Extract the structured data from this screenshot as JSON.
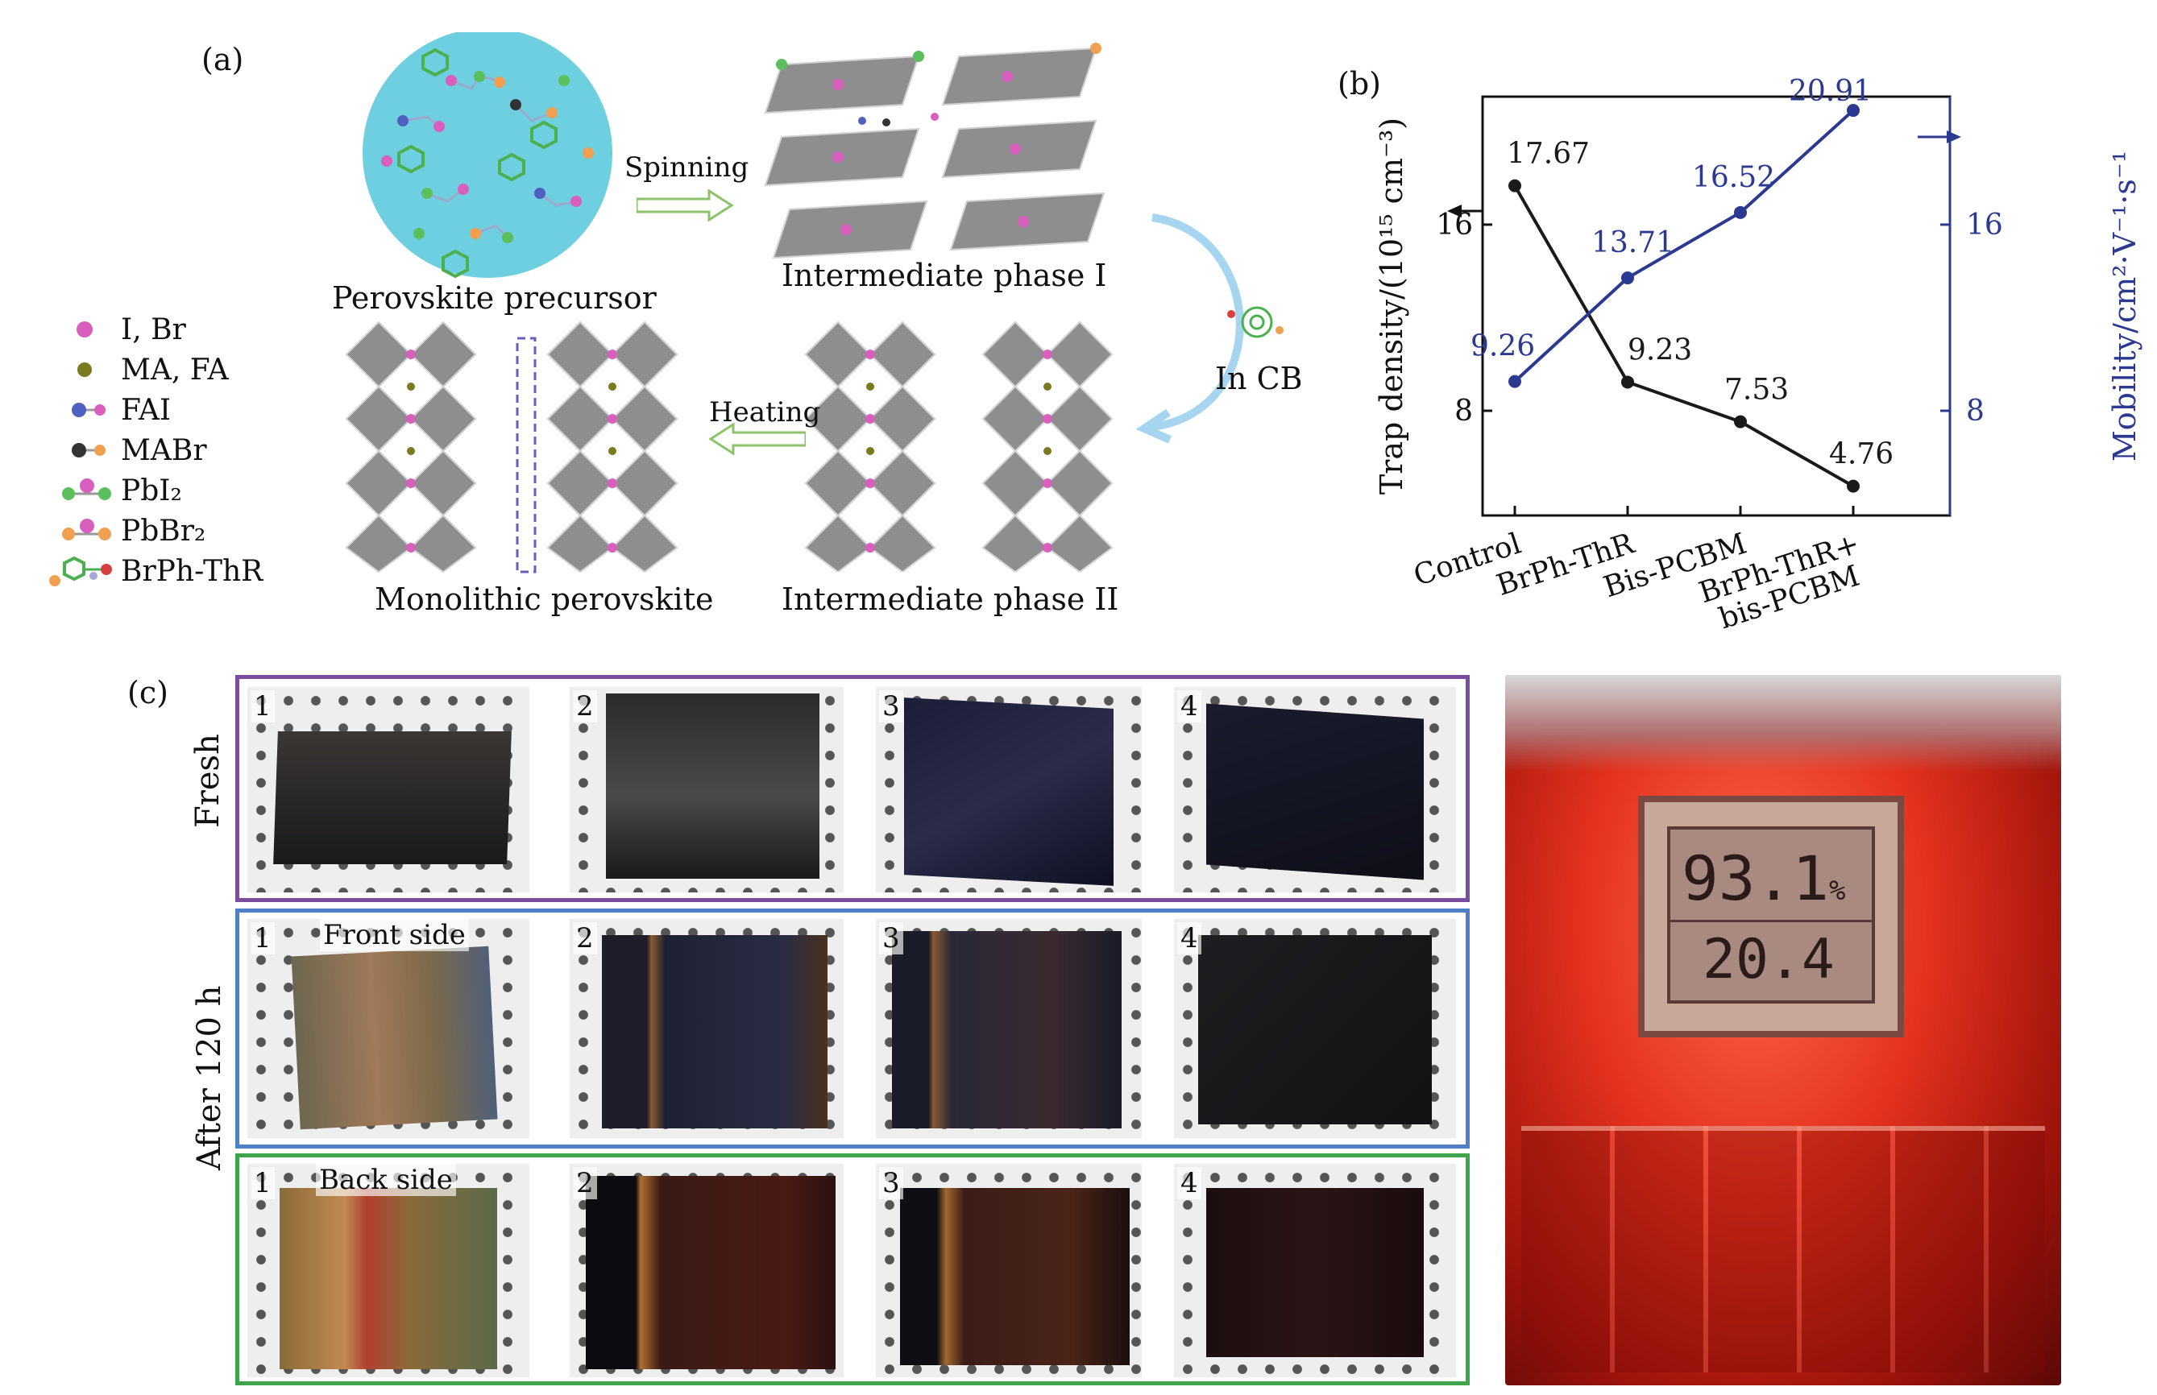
{
  "panel_a": {
    "letter": "(a)",
    "precursor_caption": "Perovskite precursor",
    "spinning_label": "Spinning",
    "phase1_caption": "Intermediate phase I",
    "in_cb_label": "In CB",
    "heating_label": "Heating",
    "phase2_caption": "Intermediate phase II",
    "monolithic_caption": "Monolithic perovskite",
    "legend": [
      {
        "label": "I, Br",
        "icon": "pink-sphere-icon"
      },
      {
        "label": "MA, FA",
        "icon": "olive-sphere-icon"
      },
      {
        "label": "FAI",
        "icon": "fai-molecule-icon"
      },
      {
        "label": "MABr",
        "icon": "mabr-molecule-icon"
      },
      {
        "label": "PbI₂",
        "icon": "pbi2-molecule-icon"
      },
      {
        "label": "PbBr₂",
        "icon": "pbbr2-molecule-icon"
      },
      {
        "label": "BrPh-ThR",
        "icon": "brph-thr-molecule-icon"
      }
    ]
  },
  "panel_b": {
    "letter": "(b)"
  },
  "chart_data": {
    "type": "line",
    "categories": [
      "Control",
      "BrPh-ThR",
      "Bis-PCBM",
      "BrPh-ThR+ bis-PCBM"
    ],
    "ylabel": "Trap density/(10¹⁵ cm⁻³)",
    "y2label": "Mobility/cm²·V⁻¹·s⁻¹",
    "y_ticks": [
      "8",
      "16"
    ],
    "y2_ticks": [
      "8",
      "16"
    ],
    "ylim": [
      3.5,
      21.5
    ],
    "series": [
      {
        "values": [
          17.67,
          9.23,
          7.53,
          4.76
        ],
        "labels": [
          "17.67",
          "9.23",
          "7.53",
          "4.76"
        ],
        "axis": "left",
        "color": "#1a1a1a"
      },
      {
        "values": [
          9.26,
          13.71,
          16.52,
          20.91
        ],
        "labels": [
          "9.26",
          "13.71",
          "16.52",
          "20.91"
        ],
        "axis": "right",
        "color": "#2b3990"
      }
    ]
  },
  "panel_c": {
    "letter": "(c)",
    "row_labels": {
      "fresh": "Fresh",
      "after": "After 120 h"
    },
    "front_side": "Front side",
    "back_side": "Back side",
    "sample_numbers": [
      "1",
      "2",
      "3",
      "4"
    ],
    "colors": {
      "fresh_border": "#7b4d9e",
      "front_border": "#4f7fc6",
      "back_border": "#3fa54a"
    },
    "hygrometer": {
      "humidity": "93.1",
      "humidity_unit": "%",
      "temperature": "20.4"
    }
  }
}
